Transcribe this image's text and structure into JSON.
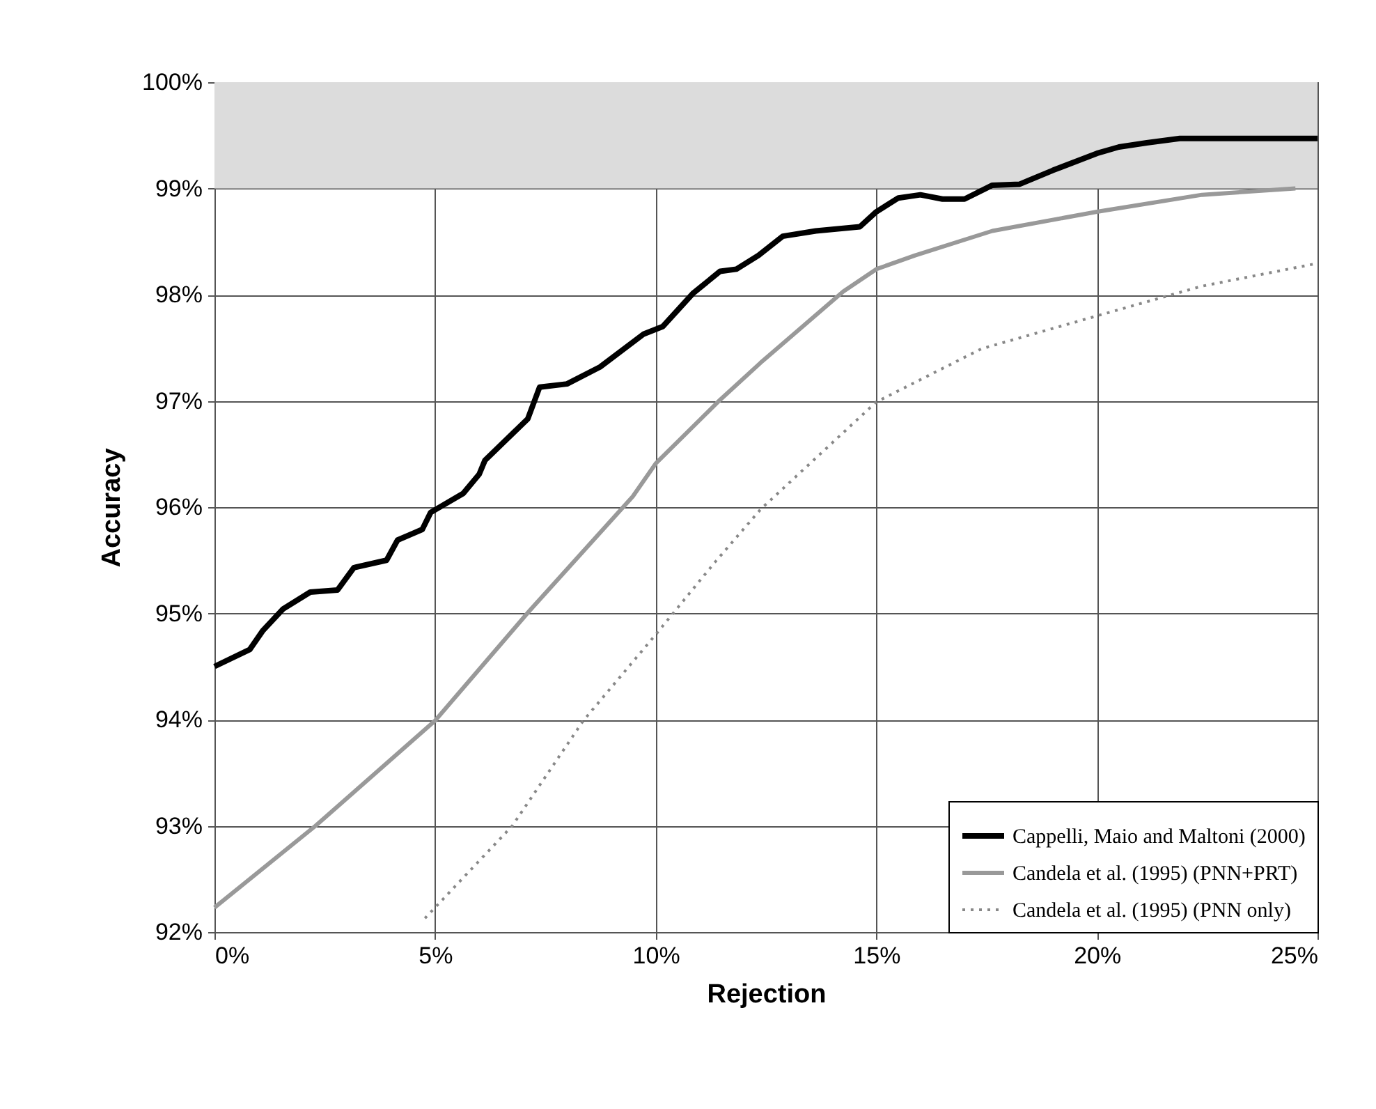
{
  "chart_data": {
    "type": "line",
    "xlabel": "Rejection",
    "ylabel": "Accuracy",
    "xlim": [
      0,
      25
    ],
    "ylim": [
      92,
      100
    ],
    "xticks": [
      {
        "value": 0,
        "label": "0%"
      },
      {
        "value": 5,
        "label": "5%"
      },
      {
        "value": 10,
        "label": "10%"
      },
      {
        "value": 15,
        "label": "15%"
      },
      {
        "value": 20,
        "label": "20%"
      },
      {
        "value": 25,
        "label": "25%"
      }
    ],
    "yticks": [
      {
        "value": 92,
        "label": "92%"
      },
      {
        "value": 93,
        "label": "93%"
      },
      {
        "value": 94,
        "label": "94%"
      },
      {
        "value": 95,
        "label": "95%"
      },
      {
        "value": 96,
        "label": "96%"
      },
      {
        "value": 97,
        "label": "97%"
      },
      {
        "value": 98,
        "label": "98%"
      },
      {
        "value": 99,
        "label": "99%"
      },
      {
        "value": 100,
        "label": "100%"
      }
    ],
    "grid": true,
    "legend": "bottom right",
    "marker": "none",
    "bands": [
      {
        "axis": "y",
        "from": 99,
        "to": 100,
        "color": "#dcdcdc"
      }
    ],
    "series": [
      {
        "name": "Cappelli, Maio and Maltoni (2000)",
        "color": "#000000",
        "line_style": "solid",
        "x": [
          0,
          0.8,
          1.1,
          1.55,
          2.17,
          2.79,
          3.16,
          3.9,
          4.15,
          4.71,
          4.9,
          5.64,
          6.0,
          6.13,
          6.5,
          7.1,
          7.37,
          7.99,
          8.74,
          9.73,
          10.16,
          10.84,
          11.46,
          11.83,
          12.33,
          12.88,
          13.63,
          14.63,
          15.0,
          15.5,
          16.0,
          16.5,
          17.0,
          17.63,
          18.25,
          19.0,
          20.0,
          20.5,
          21.13,
          21.88,
          25.0
        ],
        "values": [
          94.5,
          94.66,
          94.84,
          95.04,
          95.2,
          95.22,
          95.43,
          95.5,
          95.69,
          95.79,
          95.95,
          96.13,
          96.31,
          96.44,
          96.59,
          96.83,
          97.13,
          97.16,
          97.32,
          97.63,
          97.7,
          98.01,
          98.22,
          98.24,
          98.37,
          98.55,
          98.6,
          98.64,
          98.78,
          98.91,
          98.94,
          98.9,
          98.9,
          99.03,
          99.04,
          99.17,
          99.33,
          99.39,
          99.43,
          99.47,
          99.47
        ]
      },
      {
        "name": "Candela et al. (1995) (PNN+PRT)",
        "color": "#999999",
        "line_style": "solid",
        "x": [
          0,
          2.29,
          5.0,
          7.13,
          9.48,
          10.0,
          11.46,
          12.38,
          14.25,
          15.0,
          15.88,
          17.63,
          20.0,
          22.38,
          24.5
        ],
        "values": [
          92.23,
          93.0,
          93.99,
          95.02,
          96.1,
          96.41,
          97.01,
          97.36,
          98.03,
          98.24,
          98.37,
          98.6,
          98.78,
          98.94,
          99.0
        ]
      },
      {
        "name": "Candela et al. (1995) (PNN only)",
        "color": "#888888",
        "line_style": "dotted",
        "x": [
          4.77,
          6.75,
          8.36,
          10.0,
          11.34,
          12.38,
          15.0,
          17.38,
          20.0,
          22.38,
          24.94
        ],
        "values": [
          92.13,
          93.0,
          93.99,
          94.8,
          95.48,
          95.98,
          96.99,
          97.49,
          97.8,
          98.08,
          98.29
        ]
      }
    ]
  }
}
